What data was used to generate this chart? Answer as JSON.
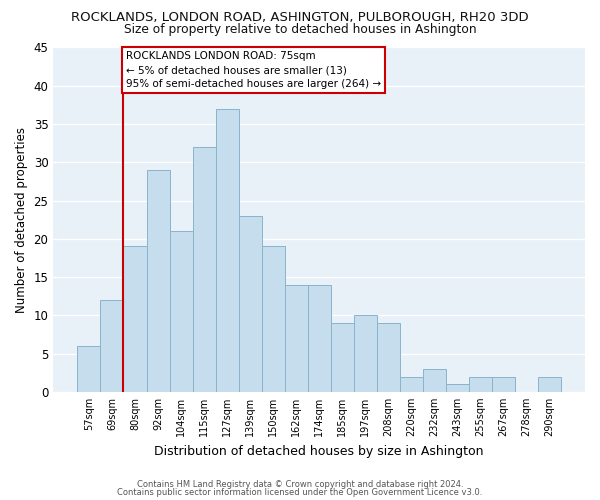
{
  "title": "ROCKLANDS, LONDON ROAD, ASHINGTON, PULBOROUGH, RH20 3DD",
  "subtitle": "Size of property relative to detached houses in Ashington",
  "xlabel": "Distribution of detached houses by size in Ashington",
  "ylabel": "Number of detached properties",
  "bar_labels": [
    "57sqm",
    "69sqm",
    "80sqm",
    "92sqm",
    "104sqm",
    "115sqm",
    "127sqm",
    "139sqm",
    "150sqm",
    "162sqm",
    "174sqm",
    "185sqm",
    "197sqm",
    "208sqm",
    "220sqm",
    "232sqm",
    "243sqm",
    "255sqm",
    "267sqm",
    "278sqm",
    "290sqm"
  ],
  "bar_values": [
    6,
    12,
    19,
    29,
    21,
    32,
    37,
    23,
    19,
    14,
    14,
    9,
    10,
    9,
    2,
    3,
    1,
    2,
    2,
    0,
    2
  ],
  "bar_color": "#c5dded",
  "bar_edge_color": "#8ab4cc",
  "background_color": "#ffffff",
  "plot_bg_color": "#e8f0f8",
  "grid_color": "#ffffff",
  "marker_line_color": "#cc0000",
  "annotation_title": "ROCKLANDS LONDON ROAD: 75sqm",
  "annotation_line1": "← 5% of detached houses are smaller (13)",
  "annotation_line2": "95% of semi-detached houses are larger (264) →",
  "annotation_box_edge": "#cc0000",
  "yticks": [
    0,
    5,
    10,
    15,
    20,
    25,
    30,
    35,
    40,
    45
  ],
  "ylim": [
    0,
    45
  ],
  "footnote1": "Contains HM Land Registry data © Crown copyright and database right 2024.",
  "footnote2": "Contains public sector information licensed under the Open Government Licence v3.0."
}
